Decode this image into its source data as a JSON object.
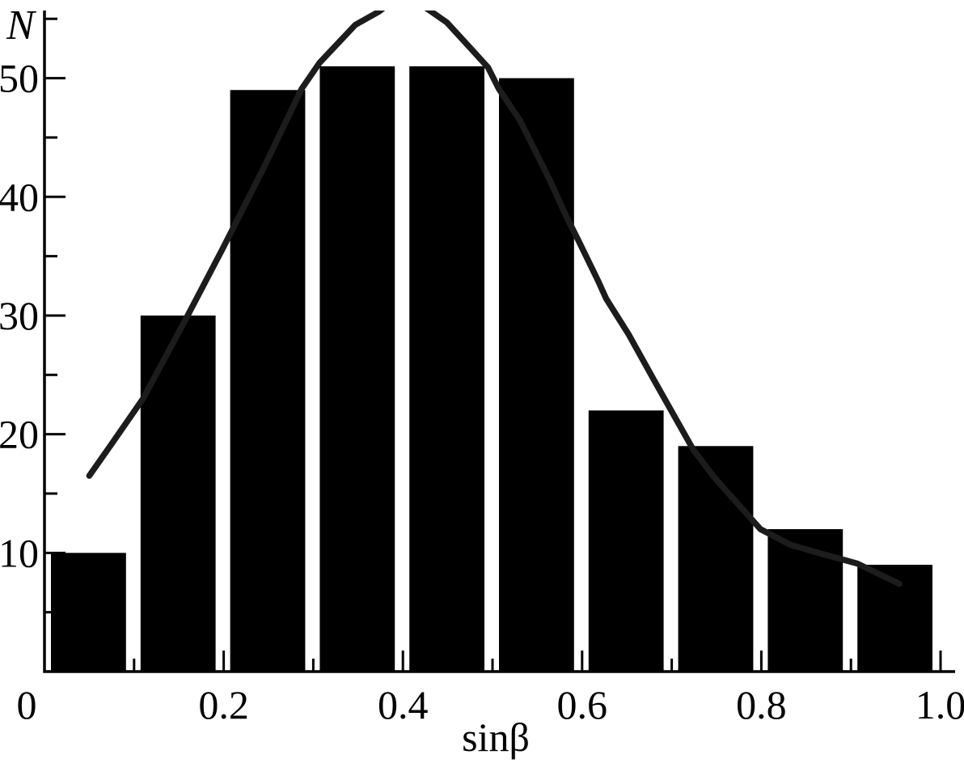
{
  "figure": {
    "y_axis_title": "N",
    "x_axis_title": "sinβ",
    "background_color": "#ffffff",
    "bar_color": "#000000",
    "curve_color": "#1c1c1c",
    "axis_color": "#000000"
  },
  "chart_data": {
    "type": "bar",
    "title": "",
    "xlabel": "sinβ",
    "ylabel": "N",
    "xlim": [
      0,
      1.015
    ],
    "ylim": [
      0,
      55.7
    ],
    "grid": false,
    "legend": "none",
    "bin_width": 0.1,
    "bin_starts": [
      0.0,
      0.1,
      0.2,
      0.3,
      0.4,
      0.5,
      0.6,
      0.7,
      0.8,
      0.9
    ],
    "values": [
      10,
      30,
      49,
      51,
      51,
      50,
      22,
      19,
      12,
      9
    ],
    "x_tick_labels": [
      {
        "value": 0.0,
        "label": "0"
      },
      {
        "value": 0.2,
        "label": "0.2"
      },
      {
        "value": 0.4,
        "label": "0.4"
      },
      {
        "value": 0.6,
        "label": "0.6"
      },
      {
        "value": 0.8,
        "label": "0.8"
      },
      {
        "value": 1.0,
        "label": "1.0"
      }
    ],
    "x_minor_ticks": [
      0.1,
      0.3,
      0.5,
      0.7,
      0.9
    ],
    "y_tick_labels": [
      {
        "value": 10,
        "label": "10"
      },
      {
        "value": 20,
        "label": "20"
      },
      {
        "value": 30,
        "label": "30"
      },
      {
        "value": 40,
        "label": "40"
      },
      {
        "value": 50,
        "label": "50"
      }
    ],
    "y_minor_ticks": [
      5,
      15,
      25,
      35,
      45,
      55
    ],
    "fit_curve": {
      "name": "smoothed distribution curve",
      "clipped_at_plot_top": true,
      "points": [
        [
          0.05,
          16.5
        ],
        [
          0.077,
          19.4
        ],
        [
          0.11,
          23.0
        ],
        [
          0.155,
          29.3
        ],
        [
          0.2,
          35.8
        ],
        [
          0.245,
          42.5
        ],
        [
          0.287,
          49.1
        ],
        [
          0.307,
          51.3
        ],
        [
          0.347,
          54.5
        ],
        [
          0.373,
          55.6
        ],
        [
          0.4,
          57.2
        ],
        [
          0.43,
          55.7
        ],
        [
          0.449,
          54.7
        ],
        [
          0.477,
          52.4
        ],
        [
          0.495,
          50.9
        ],
        [
          0.507,
          49.1
        ],
        [
          0.531,
          46.4
        ],
        [
          0.564,
          41.4
        ],
        [
          0.582,
          38.4
        ],
        [
          0.596,
          36.3
        ],
        [
          0.618,
          32.9
        ],
        [
          0.627,
          31.4
        ],
        [
          0.652,
          28.4
        ],
        [
          0.68,
          24.6
        ],
        [
          0.724,
          18.7
        ],
        [
          0.747,
          16.4
        ],
        [
          0.792,
          12.6
        ],
        [
          0.799,
          12.0
        ],
        [
          0.832,
          10.7
        ],
        [
          0.859,
          10.1
        ],
        [
          0.907,
          9.1
        ],
        [
          0.954,
          7.4
        ]
      ]
    }
  }
}
